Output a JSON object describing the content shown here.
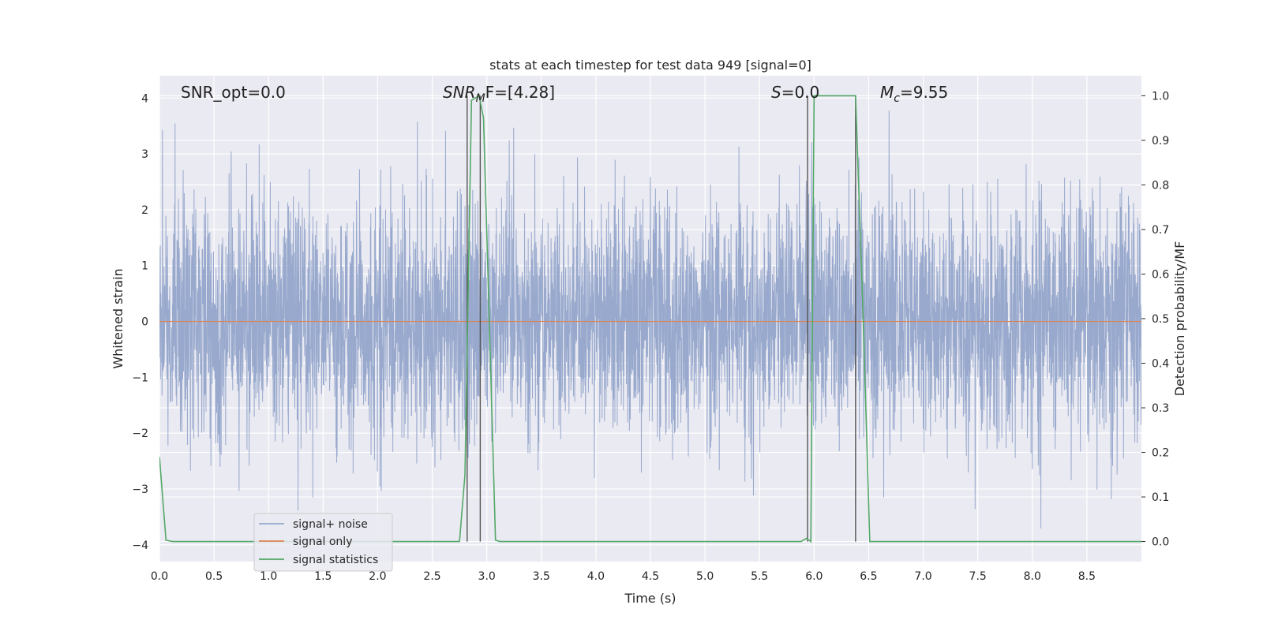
{
  "chart_data": {
    "type": "line",
    "title": "stats at each timestep for test data 949 [signal=0]",
    "xlabel": "Time (s)",
    "ylabel": "Whitened strain",
    "ylabel_right": "Detection probability/MF",
    "xlim": [
      0.0,
      9.0
    ],
    "ylim": [
      -4.3,
      4.4
    ],
    "ylim_right": [
      -0.045,
      1.045
    ],
    "x_ticks": [
      "0.0",
      "0.5",
      "1.0",
      "1.5",
      "2.0",
      "2.5",
      "3.0",
      "3.5",
      "4.0",
      "4.5",
      "5.0",
      "5.5",
      "6.0",
      "6.5",
      "7.0",
      "7.5",
      "8.0",
      "8.5"
    ],
    "y_ticks": [
      "4",
      "3",
      "2",
      "1",
      "0",
      "−1",
      "−2",
      "−3",
      "−4"
    ],
    "y_right_ticks": [
      "1.0",
      "0.9",
      "0.8",
      "0.7",
      "0.6",
      "0.5",
      "0.4",
      "0.3",
      "0.2",
      "0.1",
      "0.0"
    ],
    "grid": true,
    "legend": {
      "placement": "lower-left",
      "entries": [
        "signal+ noise",
        "signal only",
        "signal statistics"
      ]
    },
    "annotations": {
      "snr_opt": "SNR_opt=0.0",
      "snr_mf_base": "SNR",
      "snr_mf_sub": "M",
      "snr_mf_rest": "F=[4.28]",
      "s_var": "S",
      "s_rest": "=0.0",
      "mc_base": "M",
      "mc_sub": "c",
      "mc_rest": "=9.55"
    },
    "colors": {
      "noise": "#98a9cd",
      "signal": "#dd8452",
      "statistics": "#55a868",
      "vlines": "#555555",
      "background": "#eaeaf2"
    },
    "series": [
      {
        "name": "signal+ noise",
        "description": "dense noise trace",
        "amplitude_range": [
          -3.8,
          4.0
        ]
      },
      {
        "name": "signal only",
        "values_constant": 0.0
      },
      {
        "name": "signal statistics",
        "axis": "right",
        "x": [
          0.0,
          0.06,
          0.12,
          2.75,
          2.8,
          2.86,
          2.93,
          2.97,
          3.08,
          3.12,
          5.88,
          5.93,
          5.97,
          6.0,
          6.38,
          6.45,
          6.51,
          9.0
        ],
        "y": [
          0.19,
          0.003,
          0.0,
          0.0,
          0.15,
          0.99,
          1.0,
          0.95,
          0.003,
          0.0,
          0.0,
          0.007,
          0.0,
          1.0,
          1.0,
          0.5,
          0.0,
          0.0
        ]
      }
    ],
    "vertical_lines": [
      2.82,
      2.94,
      5.94,
      6.38
    ]
  }
}
